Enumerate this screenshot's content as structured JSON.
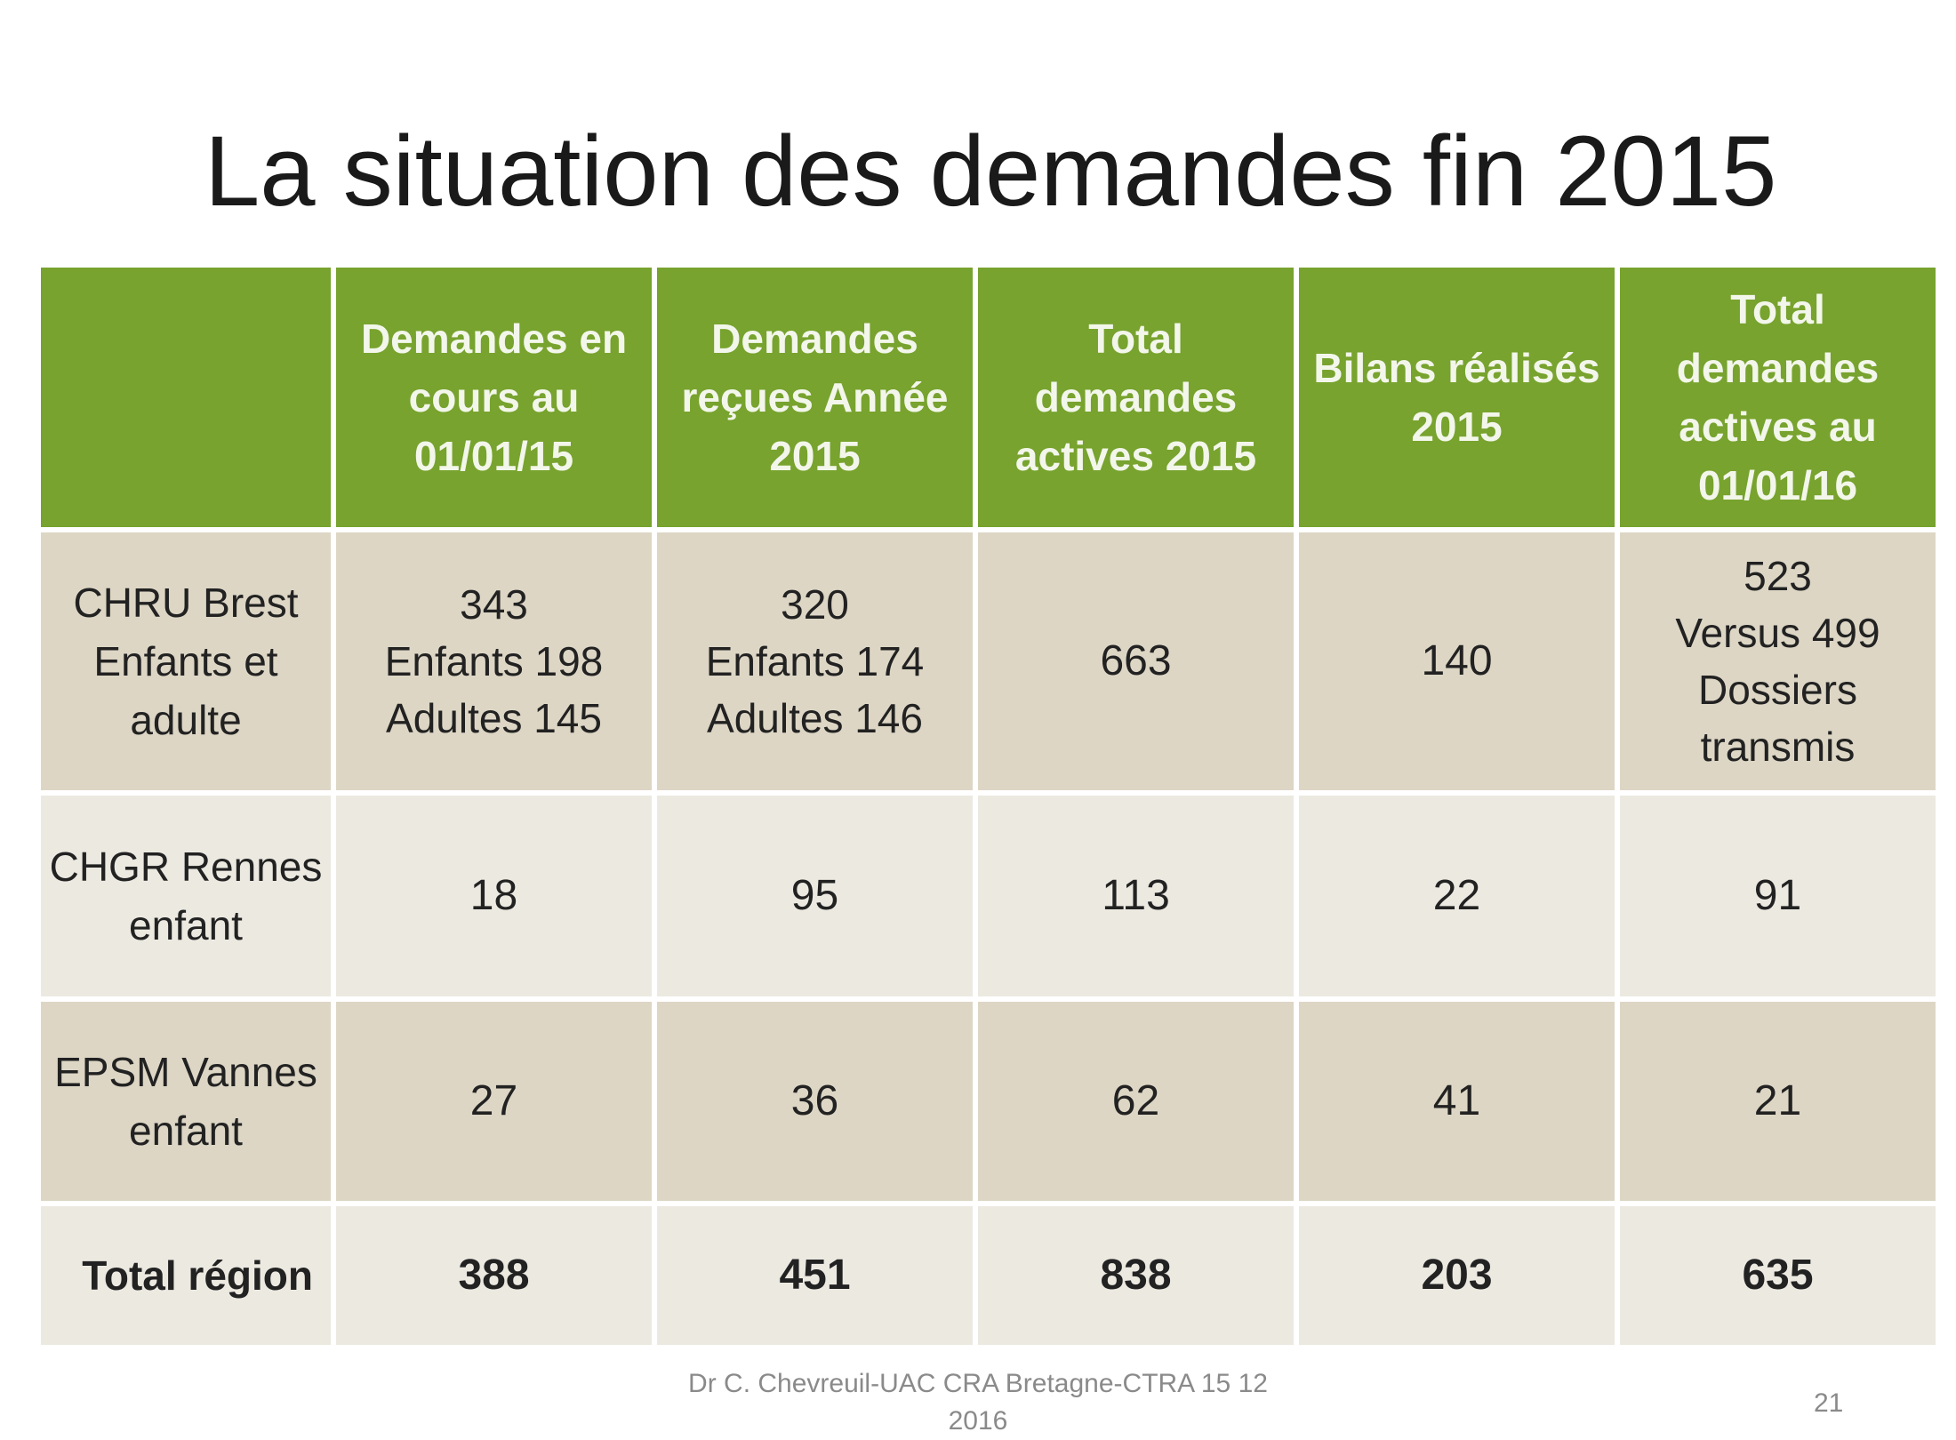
{
  "title": "La situation des demandes fin 2015",
  "table": {
    "headers": [
      "",
      "Demandes en cours au 01/01/15",
      "Demandes reçues Année 2015",
      "Total demandes actives 2015",
      "Bilans réalisés 2015",
      "Total demandes actives au 01/01/16"
    ],
    "rows": [
      {
        "label": "CHRU Brest Enfants et adulte",
        "col1": {
          "main": "343",
          "line2": "Enfants 198",
          "line3": "Adultes 145"
        },
        "col2": {
          "main": "320",
          "line2": "Enfants 174",
          "line3": "Adultes 146"
        },
        "col3": "663",
        "col4": "140",
        "col5": {
          "main": "523",
          "line2": "Versus 499",
          "line3": "Dossiers transmis"
        }
      },
      {
        "label": "CHGR Rennes enfant",
        "col1": "18",
        "col2": "95",
        "col3": "113",
        "col4": "22",
        "col5": "91"
      },
      {
        "label": "EPSM Vannes enfant",
        "col1": "27",
        "col2": "36",
        "col3": "62",
        "col4": "41",
        "col5": "21"
      },
      {
        "label": "Total région",
        "col1": "388",
        "col2": "451",
        "col3": "838",
        "col4": "203",
        "col5": "635"
      }
    ]
  },
  "footer": {
    "text": "Dr C. Chevreuil-UAC CRA Bretagne-CTRA 15 12 2016",
    "page_number": "21"
  },
  "colors": {
    "header_bg": "#77a32e",
    "row_tan": "#ddd6c5",
    "row_light": "#ece9e1"
  }
}
